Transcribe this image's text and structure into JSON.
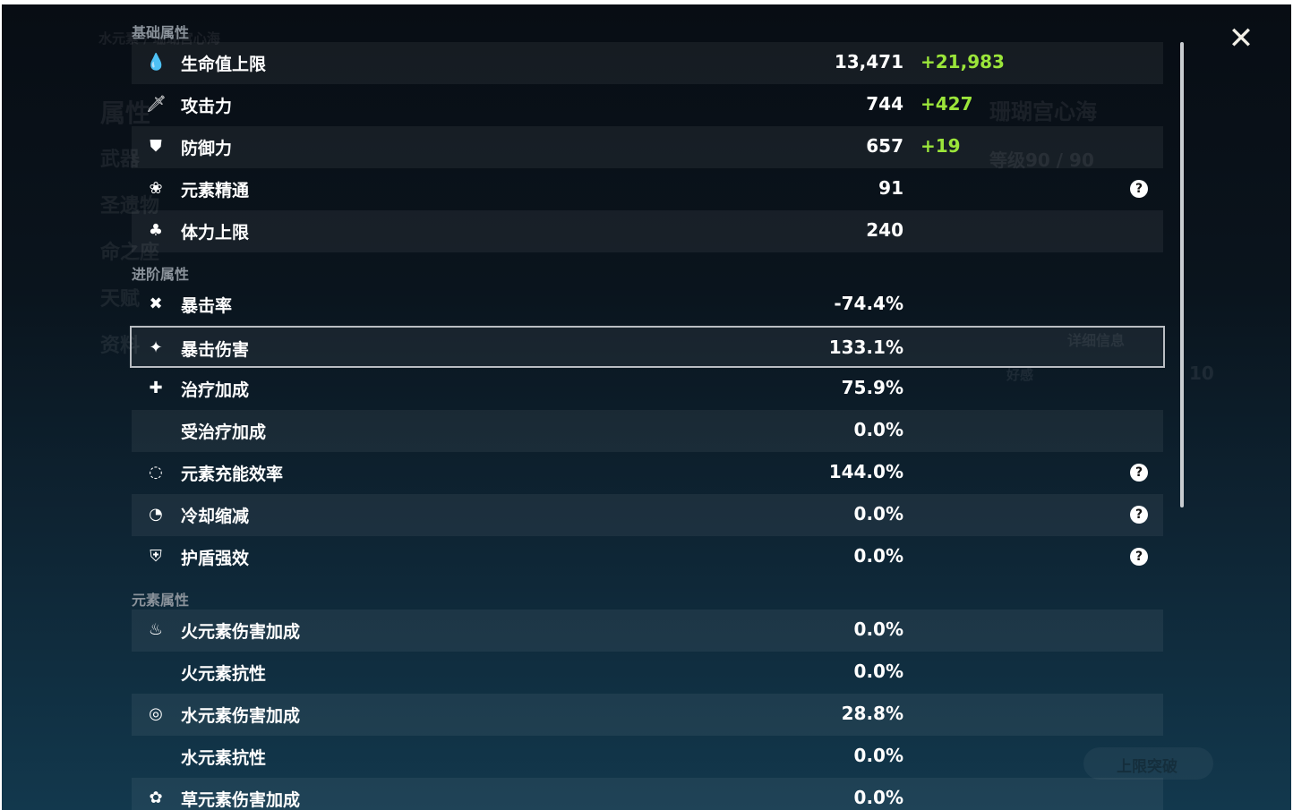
{
  "background": {
    "breadcrumb": "水元素 / 珊瑚宫心海",
    "nav": [
      "属性",
      "武器",
      "圣遗物",
      "命之座",
      "天赋",
      "资料"
    ],
    "character_name": "珊瑚宫心海",
    "level": "等级90 / 90",
    "details_button": "详细信息",
    "friendship_label": "好感",
    "friendship_value": "10",
    "ascend_button": "上限突破"
  },
  "sections": {
    "basic": "基础属性",
    "advanced": "进阶属性",
    "elemental": "元素属性"
  },
  "rows": [
    {
      "icon": "hp-drop-icon",
      "label": "生命值上限",
      "value": "13,471",
      "bonus": "+21,983"
    },
    {
      "icon": "sword-icon",
      "label": "攻击力",
      "value": "744",
      "bonus": "+427"
    },
    {
      "icon": "shield-icon",
      "label": "防御力",
      "value": "657",
      "bonus": "+19"
    },
    {
      "icon": "elemental-mastery-icon",
      "label": "元素精通",
      "value": "91",
      "help": true
    },
    {
      "icon": "stamina-icon",
      "label": "体力上限",
      "value": "240"
    },
    {
      "icon": "crit-rate-icon",
      "label": "暴击率",
      "value": "-74.4%"
    },
    {
      "icon": "crit-dmg-icon",
      "label": "暴击伤害",
      "value": "133.1%",
      "selected": true
    },
    {
      "icon": "healing-cross-icon",
      "label": "治疗加成",
      "value": "75.9%"
    },
    {
      "icon": "",
      "label": "受治疗加成",
      "value": "0.0%"
    },
    {
      "icon": "energy-recharge-icon",
      "label": "元素充能效率",
      "value": "144.0%",
      "help": true
    },
    {
      "icon": "cooldown-icon",
      "label": "冷却缩减",
      "value": "0.0%",
      "help": true
    },
    {
      "icon": "shield-strength-icon",
      "label": "护盾强效",
      "value": "0.0%",
      "help": true
    },
    {
      "icon": "pyro-icon",
      "label": "火元素伤害加成",
      "value": "0.0%"
    },
    {
      "icon": "",
      "label": "火元素抗性",
      "value": "0.0%"
    },
    {
      "icon": "hydro-icon",
      "label": "水元素伤害加成",
      "value": "28.8%"
    },
    {
      "icon": "",
      "label": "水元素抗性",
      "value": "0.0%"
    },
    {
      "icon": "dendro-icon",
      "label": "草元素伤害加成",
      "value": "0.0%"
    }
  ],
  "colors": {
    "bonus": "#9be53a",
    "selected_border": "#b9bdc2"
  }
}
